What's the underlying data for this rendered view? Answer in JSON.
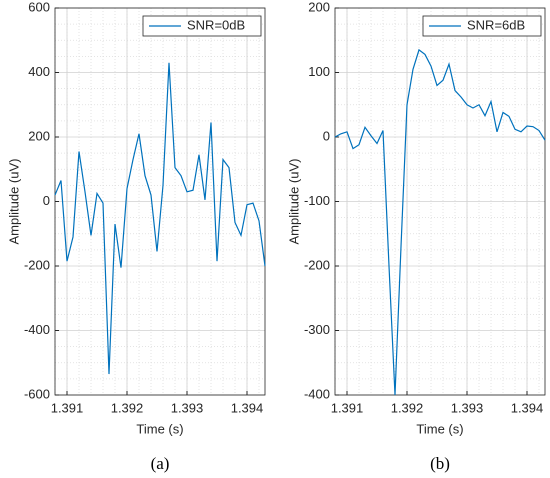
{
  "chart_data": [
    {
      "type": "line",
      "xlabel": "Time (s)",
      "ylabel": "Amplitude (uV)",
      "caption": "(a)",
      "x": [
        1.3908,
        1.3909,
        1.391,
        1.3911,
        1.3912,
        1.3913,
        1.3914,
        1.3915,
        1.3916,
        1.3917,
        1.3918,
        1.3919,
        1.392,
        1.3921,
        1.3922,
        1.3923,
        1.3924,
        1.3925,
        1.3926,
        1.3927,
        1.3928,
        1.3929,
        1.393,
        1.3931,
        1.3932,
        1.3933,
        1.3934,
        1.3935,
        1.3936,
        1.3937,
        1.3938,
        1.3939,
        1.394,
        1.3941,
        1.3942,
        1.3943
      ],
      "series": [
        {
          "name": "SNR=0dB",
          "color": "#0072bd",
          "values": [
            20,
            65,
            -185,
            -110,
            155,
            30,
            -105,
            25,
            -5,
            -535,
            -70,
            -205,
            40,
            130,
            210,
            80,
            20,
            -155,
            50,
            430,
            105,
            80,
            30,
            35,
            145,
            5,
            245,
            -185,
            130,
            105,
            -65,
            -105,
            -10,
            -5,
            -60,
            -200
          ]
        }
      ],
      "xlim": [
        1.3908,
        1.3943
      ],
      "ylim": [
        -600,
        600
      ],
      "xticks": [
        1.391,
        1.392,
        1.393,
        1.394
      ],
      "yticks": [
        -600,
        -400,
        -200,
        0,
        200,
        400,
        600
      ],
      "grid": true,
      "legend": "upper right"
    },
    {
      "type": "line",
      "xlabel": "Time (s)",
      "ylabel": "Amplitude (uV)",
      "caption": "(b)",
      "x": [
        1.3908,
        1.3909,
        1.391,
        1.3911,
        1.3912,
        1.3913,
        1.3914,
        1.3915,
        1.3916,
        1.3917,
        1.3918,
        1.3919,
        1.392,
        1.3921,
        1.3922,
        1.3923,
        1.3924,
        1.3925,
        1.3926,
        1.3927,
        1.3928,
        1.3929,
        1.393,
        1.3931,
        1.3932,
        1.3933,
        1.3934,
        1.3935,
        1.3936,
        1.3937,
        1.3938,
        1.3939,
        1.394,
        1.3941,
        1.3942,
        1.3943
      ],
      "series": [
        {
          "name": "SNR=6dB",
          "color": "#0072bd",
          "values": [
            0,
            5,
            8,
            -18,
            -12,
            15,
            2,
            -10,
            10,
            -200,
            -400,
            -170,
            50,
            105,
            135,
            128,
            110,
            80,
            88,
            113,
            72,
            62,
            50,
            45,
            50,
            33,
            55,
            8,
            38,
            32,
            12,
            8,
            17,
            16,
            10,
            -5
          ]
        }
      ],
      "xlim": [
        1.3908,
        1.3943
      ],
      "ylim": [
        -400,
        200
      ],
      "xticks": [
        1.391,
        1.392,
        1.393,
        1.394
      ],
      "yticks": [
        -400,
        -300,
        -200,
        -100,
        0,
        100,
        200
      ],
      "grid": true,
      "legend": "upper right"
    }
  ]
}
